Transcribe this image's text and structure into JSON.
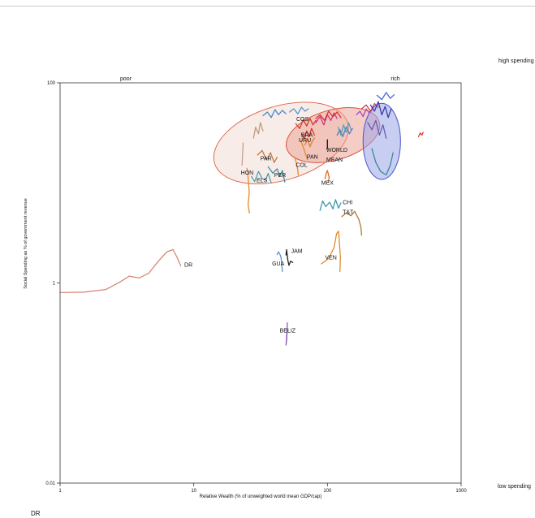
{
  "chart_data": {
    "type": "line",
    "xscale": "log",
    "yscale": "log",
    "xlim": [
      1,
      1000
    ],
    "ylim": [
      0.01,
      100
    ],
    "xticks": [
      "1",
      "10",
      "100",
      "1000"
    ],
    "yticks": [
      "100",
      "1",
      "0.01"
    ],
    "xlabel": "Relative Wealth (% of unweighted world mean GDP/cap)",
    "ylabel": "Social Spending as % of government revenue",
    "top_labels": {
      "left": "poor",
      "right": "rich"
    },
    "side_labels": {
      "top": "high spending",
      "bottom": "low spending"
    },
    "grid": false,
    "ellipses": [
      {
        "fill": "#f3dcd6",
        "stroke": "#e26b50",
        "opacity": 0.55,
        "cx": 45,
        "cy": 25,
        "rx_log": 0.52,
        "ry_log": 0.37,
        "angle": -17
      },
      {
        "fill": "#ea9c8f",
        "stroke": "#d9523c",
        "opacity": 0.5,
        "cx": 110,
        "cy": 30,
        "rx_log": 0.36,
        "ry_log": 0.25,
        "angle": -16
      },
      {
        "fill": "#9aa4e8",
        "stroke": "#4a54c8",
        "opacity": 0.55,
        "cx": 255,
        "cy": 26,
        "rx_log": 0.14,
        "ry_log": 0.38,
        "angle": 0
      }
    ],
    "series": [
      {
        "name": "DR",
        "color": "#d98576",
        "x": [
          1,
          1.5,
          2.2,
          2.8,
          3.3,
          3.9,
          4.6,
          5.4,
          6.3,
          7.0,
          7.5,
          8.0
        ],
        "y": [
          0.8,
          0.81,
          0.86,
          1.02,
          1.17,
          1.12,
          1.25,
          1.63,
          2.05,
          2.15,
          1.8,
          1.48
        ]
      },
      {
        "name": "BELIZ",
        "color": "#8a5ab8",
        "x": [
          50,
          49.6,
          49.3,
          49.0,
          49.3,
          49.8,
          50.1
        ],
        "y": [
          0.34,
          0.28,
          0.26,
          0.24,
          0.27,
          0.33,
          0.4
        ]
      },
      {
        "name": "GUA",
        "color": "#5b8fd6",
        "x": [
          42,
          43,
          44,
          45,
          45.5,
          46
        ],
        "y": [
          1.92,
          2.05,
          1.95,
          1.8,
          1.55,
          1.3
        ]
      },
      {
        "name": "JAM",
        "color": "#222222",
        "x": [
          49,
          49.5,
          50.5,
          51.5,
          53,
          55
        ],
        "y": [
          1.9,
          2.15,
          1.7,
          1.5,
          1.65,
          1.6
        ]
      },
      {
        "name": "VEN",
        "color": "#e08a2c",
        "x": [
          90,
          102,
          112,
          117,
          121,
          123,
          125,
          124
        ],
        "y": [
          1.55,
          1.75,
          2.25,
          3.1,
          3.3,
          2.5,
          1.8,
          1.3
        ]
      },
      {
        "name": "CHI",
        "color": "#3a9bb0",
        "x": [
          88,
          92,
          97,
          104,
          110,
          115,
          121,
          126
        ],
        "y": [
          5.3,
          6.6,
          5.8,
          6.4,
          5.5,
          6.8,
          5.6,
          6.3
        ]
      },
      {
        "name": "T&T",
        "color": "#b07a38",
        "x": [
          128,
          138,
          150,
          160,
          172,
          178,
          180
        ],
        "y": [
          4.6,
          5.0,
          4.7,
          5.2,
          4.3,
          3.6,
          3.0
        ]
      },
      {
        "name": "MEX",
        "color": "#e0672a",
        "x": [
          96,
          98,
          100,
          103,
          102
        ],
        "y": [
          11.0,
          12.5,
          13.3,
          11.4,
          10.2
        ]
      },
      {
        "name": "HON",
        "color": "#e58a2a",
        "x": [
          25,
          25.3,
          25.7,
          26.0,
          25.5,
          26.1
        ],
        "y": [
          14,
          13,
          10,
          8,
          6,
          5
        ]
      },
      {
        "name": "ELS",
        "color": "#4a9fb0",
        "x": [
          27,
          28.5,
          30.5,
          32.5,
          34.5,
          36,
          38
        ],
        "y": [
          11.6,
          10.3,
          13,
          11,
          10.7,
          12.4,
          10
        ]
      },
      {
        "name": "PER",
        "color": "#3f8fa8",
        "x": [
          36,
          39,
          42,
          44,
          46,
          48
        ],
        "y": [
          14.5,
          12.5,
          13.8,
          11.7,
          13.3,
          10.2
        ]
      },
      {
        "name": "COL",
        "color": "#e4862c",
        "x": [
          57,
          58,
          59,
          60,
          60.5
        ],
        "y": [
          18,
          16.5,
          15,
          13.5,
          12
        ]
      },
      {
        "name": "PAR",
        "color": "#c07a40",
        "x": [
          30,
          32.5,
          35,
          37.5,
          40,
          42
        ],
        "y": [
          19,
          21,
          17,
          20,
          16,
          18
        ]
      },
      {
        "name": "PAN",
        "color": "#e18b2d",
        "x": [
          63,
          65,
          66.5,
          68,
          69.5,
          71
        ],
        "y": [
          27,
          24,
          22,
          20,
          18.5,
          17
        ]
      },
      {
        "name": "BRA",
        "color": "#d63a2a",
        "x": [
          64,
          67,
          70,
          73,
          76,
          80
        ],
        "y": [
          31,
          27.5,
          33,
          29,
          35,
          30
        ]
      },
      {
        "name": "URU",
        "color": "#e38028",
        "x": [
          68,
          71,
          74,
          77,
          80
        ],
        "y": [
          24,
          27.5,
          23,
          26,
          28
        ]
      },
      {
        "name": "COS",
        "color": "#cf3c33",
        "x": [
          58,
          62,
          66,
          70,
          74,
          78,
          82
        ],
        "y": [
          39,
          35,
          43,
          37,
          44,
          38,
          42
        ]
      },
      {
        "name": "WORLD MEAN",
        "color": "#111111",
        "x": [
          100,
          100
        ],
        "y": [
          22,
          27
        ]
      },
      {
        "name": "",
        "color": "#c8a090",
        "x": [
          23,
          23.2,
          23.4
        ],
        "y": [
          15,
          20,
          25
        ]
      },
      {
        "name": "",
        "color": "#c49a7a",
        "x": [
          28,
          29,
          30.5,
          31.5,
          33
        ],
        "y": [
          28,
          36,
          31,
          40,
          33
        ]
      },
      {
        "name": "",
        "color": "#4a86c8",
        "x": [
          33,
          35.5,
          38,
          40.5,
          43,
          46,
          49
        ],
        "y": [
          47,
          51,
          45,
          54,
          48,
          53,
          49
        ]
      },
      {
        "name": "",
        "color": "#6090c8",
        "x": [
          52,
          56,
          60,
          64,
          68,
          72
        ],
        "y": [
          51,
          55,
          49,
          57,
          52,
          55
        ]
      },
      {
        "name": "",
        "color": "#c23c8a",
        "x": [
          82,
          88,
          94,
          100,
          106,
          112,
          118
        ],
        "y": [
          40,
          46,
          38,
          48,
          42,
          50,
          44
        ]
      },
      {
        "name": "",
        "color": "#d8302a",
        "x": [
          82,
          88,
          95,
          102,
          110,
          118,
          126
        ],
        "y": [
          44,
          48,
          42,
          52,
          46,
          51,
          45
        ]
      },
      {
        "name": "",
        "color": "#5a78c0",
        "x": [
          118,
          124,
          130,
          138,
          146,
          154
        ],
        "y": [
          30,
          34,
          29,
          36,
          31,
          35
        ]
      },
      {
        "name": "",
        "color": "#5aa0b8",
        "x": [
          120,
          126,
          132,
          138,
          144,
          150
        ],
        "y": [
          36,
          30,
          38,
          32,
          40,
          34
        ]
      },
      {
        "name": "",
        "color": "#a04cc0",
        "x": [
          165,
          175,
          185,
          195,
          205,
          215
        ],
        "y": [
          48,
          52,
          46,
          55,
          50,
          53
        ]
      },
      {
        "name": "",
        "color": "#d23a4a",
        "x": [
          180,
          195,
          210,
          225,
          240
        ],
        "y": [
          55,
          60,
          52,
          62,
          57
        ]
      },
      {
        "name": "",
        "color": "#3a3aa8",
        "x": [
          210,
          225,
          240,
          255,
          270,
          285,
          300
        ],
        "y": [
          60,
          52,
          65,
          48,
          58,
          45,
          55
        ]
      },
      {
        "name": "",
        "color": "#6a5ab0",
        "x": [
          200,
          215,
          230,
          245,
          260,
          275
        ],
        "y": [
          40,
          34,
          42,
          30,
          38,
          28
        ]
      },
      {
        "name": "",
        "color": "#3a8a9a",
        "x": [
          215,
          230,
          250,
          275,
          295,
          310
        ],
        "y": [
          22,
          16,
          13,
          12,
          15,
          20
        ]
      },
      {
        "name": "",
        "color": "#4a6ad0",
        "x": [
          235,
          255,
          275,
          295,
          315
        ],
        "y": [
          75,
          68,
          80,
          70,
          76
        ]
      },
      {
        "name": "",
        "color": "#d63a2a",
        "x": [
          480,
          495,
          510,
          520
        ],
        "y": [
          29,
          31.5,
          30,
          32
        ]
      }
    ],
    "labels": [
      {
        "text": "DR",
        "x": 8.5,
        "y": 1.45
      },
      {
        "text": "BELIZ",
        "x": 44,
        "y": 0.32
      },
      {
        "text": "GUA",
        "x": 38.5,
        "y": 1.5
      },
      {
        "text": "JAM",
        "x": 53.5,
        "y": 2.0
      },
      {
        "text": "VEN",
        "x": 96,
        "y": 1.72
      },
      {
        "text": "CHI",
        "x": 130,
        "y": 6.1
      },
      {
        "text": "T&T",
        "x": 130,
        "y": 4.9
      },
      {
        "text": "MEX",
        "x": 90,
        "y": 9.6
      },
      {
        "text": "HON",
        "x": 22.5,
        "y": 12.1
      },
      {
        "text": "ELS",
        "x": 29.5,
        "y": 10.1
      },
      {
        "text": "PER",
        "x": 40,
        "y": 11.4
      },
      {
        "text": "COL",
        "x": 58,
        "y": 14.5
      },
      {
        "text": "PAR",
        "x": 31.5,
        "y": 16.8
      },
      {
        "text": "PAN",
        "x": 70,
        "y": 17.4
      },
      {
        "text": "BRA",
        "x": 63.5,
        "y": 28.8
      },
      {
        "text": "URU",
        "x": 61,
        "y": 25.5
      },
      {
        "text": "COS",
        "x": 58.5,
        "y": 41.5
      },
      {
        "text": "WORLD",
        "x": 98,
        "y": 20.5
      },
      {
        "text": "MEAN",
        "x": 98,
        "y": 16.4
      }
    ]
  },
  "page": {
    "side_top": "high spending",
    "side_bottom": "low spending",
    "corner_label": "DR"
  }
}
